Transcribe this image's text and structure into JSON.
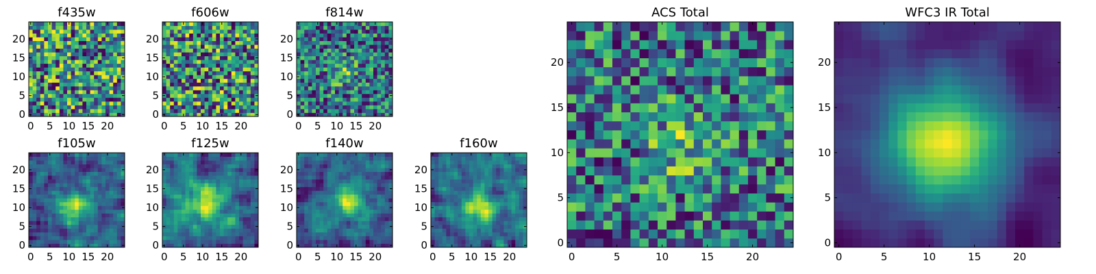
{
  "chart_data": [
    {
      "type": "heatmap",
      "title": "f435w",
      "grid": 25,
      "seed": 11,
      "mode": "noise",
      "xlabel": "",
      "ylabel": "",
      "xticks": [
        "0",
        "5",
        "10",
        "15",
        "20"
      ],
      "yticks": [
        "0",
        "5",
        "10",
        "15",
        "20"
      ],
      "xlim": [
        0,
        24
      ],
      "ylim": [
        0,
        24
      ],
      "colormap": "viridis"
    },
    {
      "type": "heatmap",
      "title": "f606w",
      "grid": 25,
      "seed": 23,
      "mode": "noise",
      "xlabel": "",
      "ylabel": "",
      "xticks": [
        "0",
        "5",
        "10",
        "15",
        "20"
      ],
      "yticks": [
        "0",
        "5",
        "10",
        "15",
        "20"
      ],
      "xlim": [
        0,
        24
      ],
      "ylim": [
        0,
        24
      ],
      "colormap": "viridis"
    },
    {
      "type": "heatmap",
      "title": "f814w",
      "grid": 25,
      "seed": 37,
      "mode": "weak-source",
      "source_center": [
        12,
        11
      ],
      "xlabel": "",
      "ylabel": "",
      "xticks": [
        "0",
        "5",
        "10",
        "15",
        "20"
      ],
      "yticks": [
        "0",
        "5",
        "10",
        "15",
        "20"
      ],
      "xlim": [
        0,
        24
      ],
      "ylim": [
        0,
        24
      ],
      "colormap": "viridis"
    },
    {
      "type": "heatmap",
      "title": "f105w",
      "grid": 25,
      "seed": 41,
      "mode": "smooth-source",
      "source_center": [
        12,
        10
      ],
      "xlabel": "",
      "ylabel": "",
      "xticks": [
        "0",
        "5",
        "10",
        "15",
        "20"
      ],
      "yticks": [
        "0",
        "5",
        "10",
        "15",
        "20"
      ],
      "xlim": [
        0,
        24
      ],
      "ylim": [
        0,
        24
      ],
      "colormap": "viridis"
    },
    {
      "type": "heatmap",
      "title": "f125w",
      "grid": 25,
      "seed": 53,
      "mode": "smooth-source",
      "source_center": [
        11,
        11
      ],
      "xlabel": "",
      "ylabel": "",
      "xticks": [
        "0",
        "5",
        "10",
        "15",
        "20"
      ],
      "yticks": [
        "0",
        "5",
        "10",
        "15",
        "20"
      ],
      "xlim": [
        0,
        24
      ],
      "ylim": [
        0,
        24
      ],
      "colormap": "viridis"
    },
    {
      "type": "heatmap",
      "title": "f140w",
      "grid": 25,
      "seed": 67,
      "mode": "smooth-source",
      "source_center": [
        13,
        12
      ],
      "xlabel": "",
      "ylabel": "",
      "xticks": [
        "0",
        "5",
        "10",
        "15",
        "20"
      ],
      "yticks": [
        "0",
        "5",
        "10",
        "15",
        "20"
      ],
      "xlim": [
        0,
        24
      ],
      "ylim": [
        0,
        24
      ],
      "colormap": "viridis"
    },
    {
      "type": "heatmap",
      "title": "f160w",
      "grid": 25,
      "seed": 79,
      "mode": "smooth-source",
      "source_center": [
        12,
        10
      ],
      "xlabel": "",
      "ylabel": "",
      "xticks": [
        "0",
        "5",
        "10",
        "15",
        "20"
      ],
      "yticks": [
        "0",
        "5",
        "10",
        "15",
        "20"
      ],
      "xlim": [
        0,
        24
      ],
      "ylim": [
        0,
        24
      ],
      "colormap": "viridis"
    },
    {
      "type": "heatmap",
      "title": "ACS Total",
      "grid": 25,
      "seed": 97,
      "mode": "weak-source",
      "source_center": [
        12,
        11
      ],
      "xlabel": "",
      "ylabel": "",
      "xticks": [
        "0",
        "5",
        "10",
        "15",
        "20"
      ],
      "yticks": [
        "0",
        "5",
        "10",
        "15",
        "20"
      ],
      "xlim": [
        0,
        24
      ],
      "ylim": [
        0,
        24
      ],
      "colormap": "viridis"
    },
    {
      "type": "heatmap",
      "title": "WFC3 IR Total",
      "grid": 25,
      "seed": 131,
      "mode": "strong-source",
      "source_center": [
        12,
        11
      ],
      "xlabel": "",
      "ylabel": "",
      "xticks": [
        "0",
        "5",
        "10",
        "15",
        "20"
      ],
      "yticks": [
        "0",
        "5",
        "10",
        "15",
        "20"
      ],
      "xlim": [
        0,
        24
      ],
      "ylim": [
        0,
        24
      ],
      "colormap": "viridis"
    }
  ]
}
